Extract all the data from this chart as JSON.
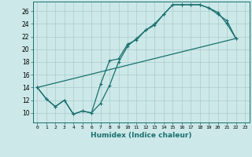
{
  "xlabel": "Humidex (Indice chaleur)",
  "ylabel": "",
  "xlim": [
    -0.5,
    23.5
  ],
  "ylim": [
    8.5,
    27.5
  ],
  "xticks": [
    0,
    1,
    2,
    3,
    4,
    5,
    6,
    7,
    8,
    9,
    10,
    11,
    12,
    13,
    14,
    15,
    16,
    17,
    18,
    19,
    20,
    21,
    22,
    23
  ],
  "yticks": [
    10,
    12,
    14,
    16,
    18,
    20,
    22,
    24,
    26
  ],
  "bg_color": "#cce8e8",
  "grid_color": "#aacccc",
  "line_color": "#1a7070",
  "line1_x": [
    0,
    1,
    2,
    3,
    4,
    5,
    6,
    7,
    8,
    9,
    10,
    11,
    12,
    13,
    14,
    15,
    16,
    17,
    18,
    19,
    20,
    21,
    22
  ],
  "line1_y": [
    14.0,
    12.2,
    11.0,
    12.0,
    9.8,
    10.3,
    10.0,
    11.5,
    14.3,
    18.0,
    20.5,
    21.7,
    23.0,
    23.8,
    25.5,
    27.0,
    27.0,
    27.0,
    27.0,
    26.5,
    25.5,
    24.5,
    21.7
  ],
  "line2_x": [
    0,
    1,
    2,
    3,
    4,
    5,
    6,
    7,
    8,
    9,
    10,
    11,
    12,
    13,
    14,
    15,
    16,
    17,
    18,
    19,
    20,
    21,
    22
  ],
  "line2_y": [
    14.0,
    12.2,
    11.0,
    12.0,
    9.8,
    10.3,
    10.0,
    14.5,
    18.2,
    18.5,
    20.8,
    21.5,
    23.0,
    24.0,
    25.5,
    27.0,
    27.0,
    27.0,
    27.0,
    26.5,
    25.8,
    24.0,
    21.7
  ],
  "line3_x": [
    0,
    22
  ],
  "line3_y": [
    14.0,
    21.7
  ],
  "marker_size": 3.5,
  "linewidth": 0.9
}
